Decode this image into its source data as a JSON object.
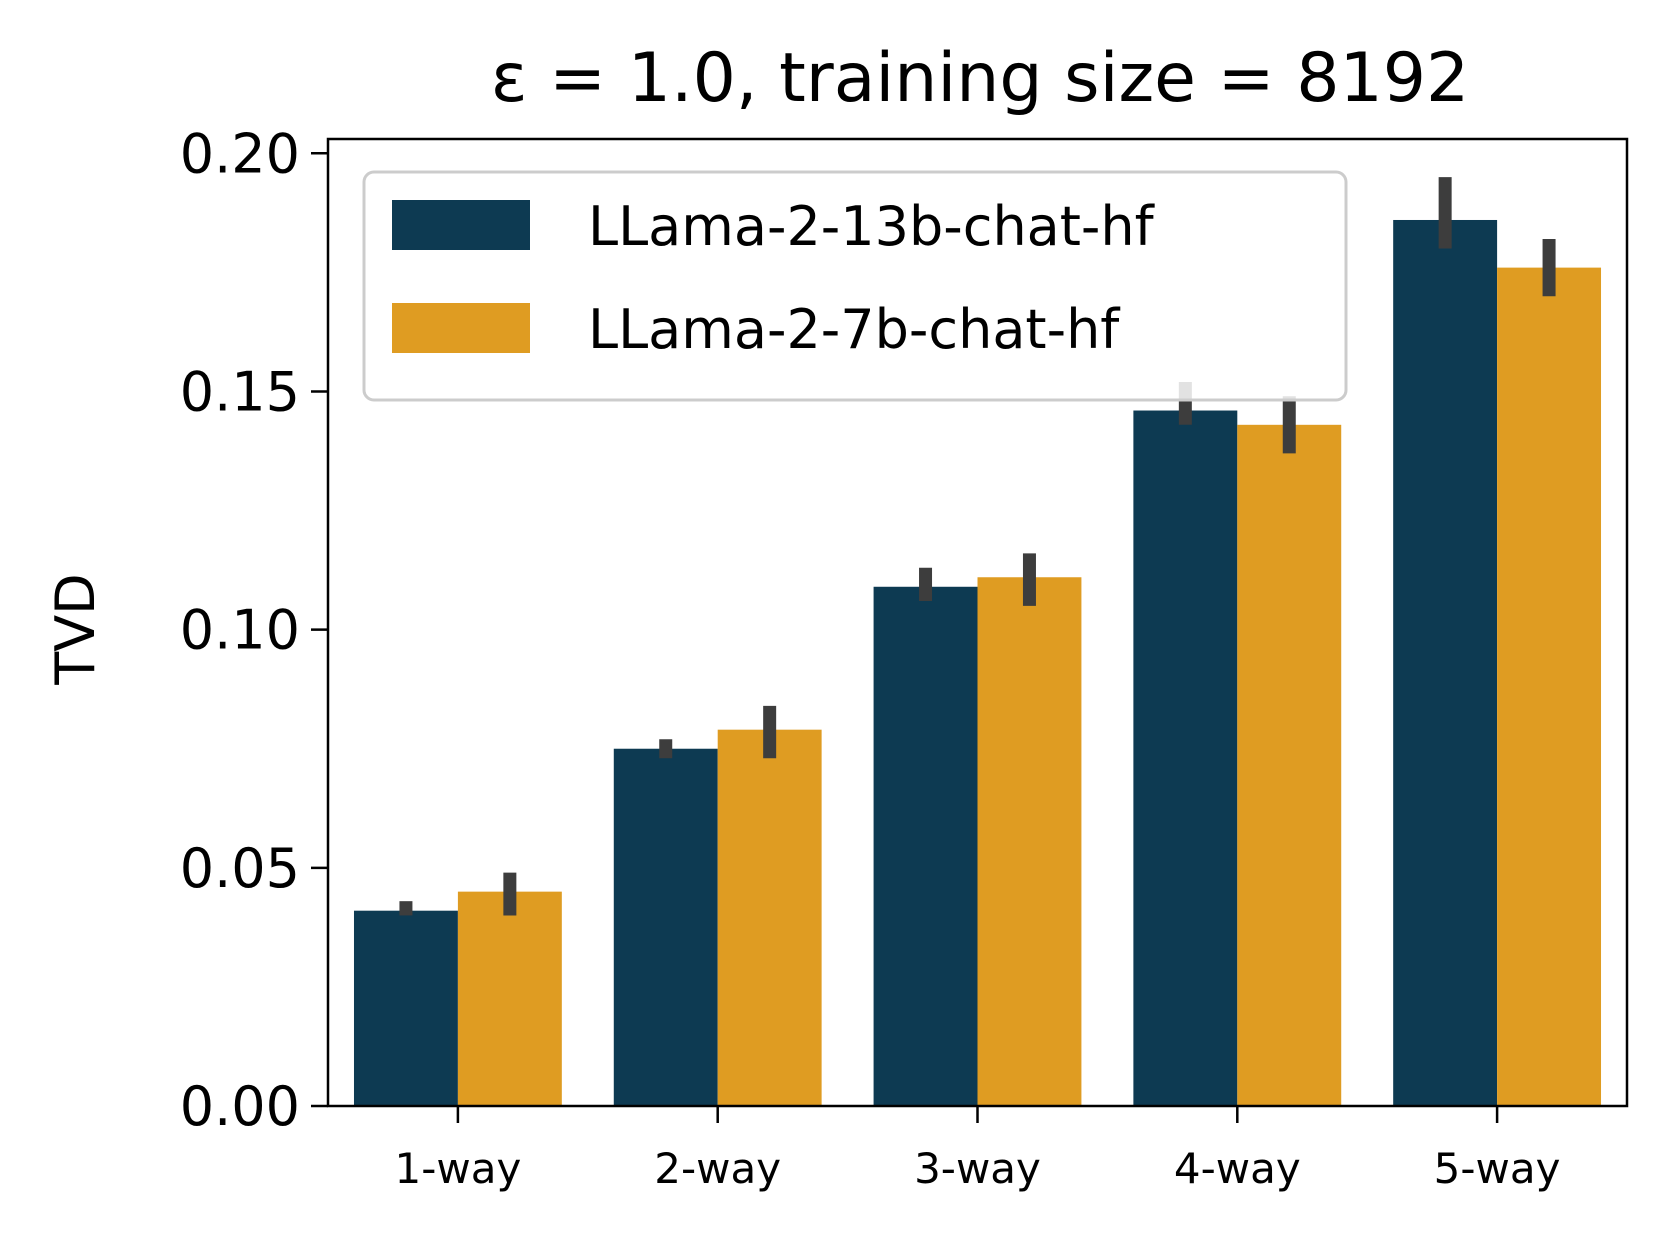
{
  "chart_data": {
    "type": "bar",
    "title": "ε = 1.0, training size = 8192",
    "xlabel": "",
    "ylabel": "TVD",
    "categories": [
      "1-way",
      "2-way",
      "3-way",
      "4-way",
      "5-way"
    ],
    "ylim": [
      0,
      0.203
    ],
    "yticks": [
      0.0,
      0.05,
      0.1,
      0.15,
      0.2
    ],
    "ytick_labels": [
      "0.00",
      "0.05",
      "0.10",
      "0.15",
      "0.20"
    ],
    "grid": false,
    "legend_position": "upper-left",
    "series": [
      {
        "name": "LLama-2-13b-chat-hf",
        "color": "#0d3a52",
        "values": [
          0.041,
          0.075,
          0.109,
          0.146,
          0.186
        ],
        "error_low": [
          0.04,
          0.073,
          0.106,
          0.143,
          0.18
        ],
        "error_high": [
          0.043,
          0.077,
          0.113,
          0.152,
          0.195
        ]
      },
      {
        "name": "LLama-2-7b-chat-hf",
        "color": "#df9c22",
        "values": [
          0.045,
          0.079,
          0.111,
          0.143,
          0.176
        ],
        "error_low": [
          0.04,
          0.073,
          0.105,
          0.137,
          0.17
        ],
        "error_high": [
          0.049,
          0.084,
          0.116,
          0.149,
          0.182
        ]
      }
    ],
    "error_bar_color": "#3d3d3d",
    "legend_bg": "#ffffff",
    "legend_border": "#cccccc"
  }
}
